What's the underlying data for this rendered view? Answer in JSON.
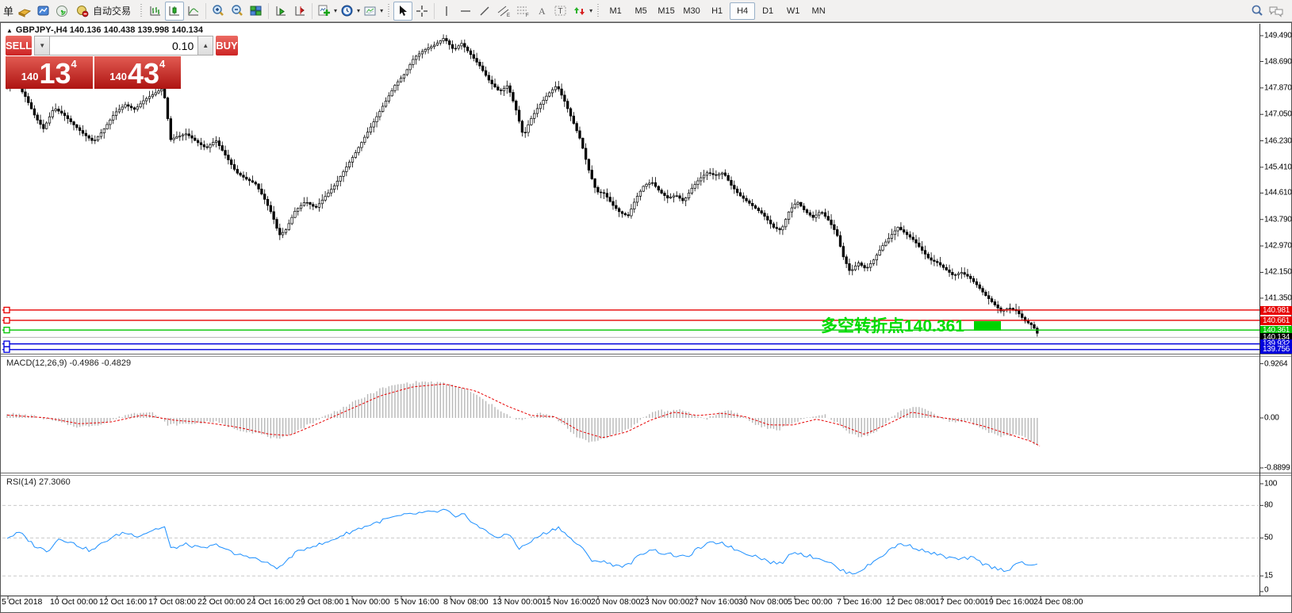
{
  "toolbar": {
    "partial_label": "单",
    "autotrade_label": "自动交易",
    "timeframes": [
      "M1",
      "M5",
      "M15",
      "M30",
      "H1",
      "H4",
      "D1",
      "W1",
      "MN"
    ],
    "active_timeframe": "H4"
  },
  "chart_header": {
    "title": "GBPJPY-,H4 140.136 140.438 139.998 140.134",
    "collapse_arrow": "▲"
  },
  "trade_panel": {
    "sell_label": "SELL",
    "buy_label": "BUY",
    "volume": "0.10",
    "sell_price_prefix": "140",
    "sell_price_main": "13",
    "sell_price_sup": "4",
    "buy_price_prefix": "140",
    "buy_price_main": "43",
    "buy_price_sup": "4"
  },
  "indicators": {
    "macd_label": "MACD(12,26,9) -0.4986 -0.4829",
    "rsi_label": "RSI(14) 27.3060"
  },
  "annotation": {
    "text": "多空转折点140.361",
    "color": "#00dc00"
  },
  "axes": {
    "price_ticks": [
      "149.490",
      "148.690",
      "147.870",
      "147.050",
      "146.230",
      "145.410",
      "144.610",
      "143.790",
      "142.970",
      "142.150",
      "141.350"
    ],
    "macd_ticks": [
      {
        "label": "0.9264",
        "value": 0.9264
      },
      {
        "label": "0.00",
        "value": 0.0
      },
      {
        "label": "-0.8899",
        "value": -0.8899
      }
    ],
    "rsi_ticks": [
      {
        "label": "100",
        "value": 100
      },
      {
        "label": "80",
        "value": 80
      },
      {
        "label": "50",
        "value": 50
      },
      {
        "label": "15",
        "value": 15
      },
      {
        "label": "0",
        "value": 0
      }
    ],
    "rsi_level_lines": [
      80,
      50,
      15
    ],
    "date_labels": [
      "5 Oct 2018",
      "10 Oct 00:00",
      "12 Oct 16:00",
      "17 Oct 08:00",
      "22 Oct 00:00",
      "24 Oct 16:00",
      "29 Oct 08:00",
      "1 Nov 00:00",
      "5 Nov 16:00",
      "8 Nov 08:00",
      "13 Nov 00:00",
      "15 Nov 16:00",
      "20 Nov 08:00",
      "23 Nov 00:00",
      "27 Nov 16:00",
      "30 Nov 08:00",
      "5 Dec 00:00",
      "7 Dec 16:00",
      "12 Dec 08:00",
      "17 Dec 00:00",
      "19 Dec 16:00",
      "24 Dec 08:00"
    ]
  },
  "price_lines": [
    {
      "price": "140.981",
      "value": 140.981,
      "color": "#e60000",
      "kind": "hline"
    },
    {
      "price": "140.661",
      "value": 140.661,
      "color": "#e60000",
      "kind": "hline"
    },
    {
      "price": "140.361",
      "value": 140.361,
      "color": "#00c400",
      "kind": "hline"
    },
    {
      "price": "140.134",
      "value": 140.134,
      "color": "#000000",
      "kind": "bid",
      "line_color": "#b4b4b4"
    },
    {
      "price": "139.932",
      "value": 139.932,
      "color": "#0000dc",
      "kind": "hline"
    },
    {
      "price": "139.756",
      "value": 139.756,
      "color": "#0000dc",
      "kind": "hline"
    }
  ],
  "chart_data": {
    "type": "candlestick",
    "symbol": "GBPJPY-",
    "timeframe": "H4",
    "ohlc_display": {
      "open": "140.136",
      "high": "140.438",
      "low": "139.998",
      "close": "140.134"
    },
    "price_path_anchors": [
      [
        8,
        147.9
      ],
      [
        20,
        148.05
      ],
      [
        32,
        147.6
      ],
      [
        45,
        146.95
      ],
      [
        55,
        146.6
      ],
      [
        68,
        147.25
      ],
      [
        80,
        147.05
      ],
      [
        92,
        146.75
      ],
      [
        105,
        146.45
      ],
      [
        118,
        146.2
      ],
      [
        130,
        146.55
      ],
      [
        145,
        147.1
      ],
      [
        158,
        147.35
      ],
      [
        170,
        147.2
      ],
      [
        182,
        147.5
      ],
      [
        195,
        147.7
      ],
      [
        205,
        147.85
      ],
      [
        210,
        147.3
      ],
      [
        214,
        146.25
      ],
      [
        222,
        146.35
      ],
      [
        235,
        146.45
      ],
      [
        248,
        146.2
      ],
      [
        260,
        146.0
      ],
      [
        272,
        146.25
      ],
      [
        285,
        145.75
      ],
      [
        298,
        145.25
      ],
      [
        310,
        145.05
      ],
      [
        322,
        144.9
      ],
      [
        333,
        144.45
      ],
      [
        343,
        143.95
      ],
      [
        352,
        143.3
      ],
      [
        360,
        143.45
      ],
      [
        372,
        144.05
      ],
      [
        385,
        144.35
      ],
      [
        398,
        144.15
      ],
      [
        410,
        144.5
      ],
      [
        422,
        144.85
      ],
      [
        435,
        145.35
      ],
      [
        448,
        145.85
      ],
      [
        460,
        146.35
      ],
      [
        472,
        146.85
      ],
      [
        485,
        147.4
      ],
      [
        498,
        147.95
      ],
      [
        510,
        148.3
      ],
      [
        522,
        148.8
      ],
      [
        535,
        149.05
      ],
      [
        548,
        149.2
      ],
      [
        560,
        149.42
      ],
      [
        572,
        149.05
      ],
      [
        582,
        149.25
      ],
      [
        592,
        148.95
      ],
      [
        605,
        148.55
      ],
      [
        618,
        148.05
      ],
      [
        630,
        147.75
      ],
      [
        640,
        147.95
      ],
      [
        650,
        147.25
      ],
      [
        660,
        146.35
      ],
      [
        668,
        146.85
      ],
      [
        678,
        147.25
      ],
      [
        690,
        147.65
      ],
      [
        702,
        147.95
      ],
      [
        712,
        147.45
      ],
      [
        722,
        146.85
      ],
      [
        732,
        146.25
      ],
      [
        742,
        145.35
      ],
      [
        752,
        144.65
      ],
      [
        762,
        144.6
      ],
      [
        772,
        144.25
      ],
      [
        782,
        144.0
      ],
      [
        792,
        143.9
      ],
      [
        802,
        144.45
      ],
      [
        812,
        144.85
      ],
      [
        822,
        144.95
      ],
      [
        832,
        144.65
      ],
      [
        842,
        144.45
      ],
      [
        852,
        144.55
      ],
      [
        862,
        144.35
      ],
      [
        872,
        144.75
      ],
      [
        882,
        145.05
      ],
      [
        892,
        145.25
      ],
      [
        902,
        145.15
      ],
      [
        912,
        145.25
      ],
      [
        922,
        144.85
      ],
      [
        932,
        144.55
      ],
      [
        942,
        144.35
      ],
      [
        952,
        144.15
      ],
      [
        962,
        143.95
      ],
      [
        975,
        143.55
      ],
      [
        985,
        143.45
      ],
      [
        995,
        144.05
      ],
      [
        1005,
        144.35
      ],
      [
        1015,
        144.05
      ],
      [
        1025,
        143.85
      ],
      [
        1035,
        144.05
      ],
      [
        1045,
        143.75
      ],
      [
        1055,
        143.35
      ],
      [
        1063,
        142.65
      ],
      [
        1072,
        142.15
      ],
      [
        1082,
        142.45
      ],
      [
        1092,
        142.25
      ],
      [
        1102,
        142.55
      ],
      [
        1112,
        142.95
      ],
      [
        1122,
        143.25
      ],
      [
        1132,
        143.55
      ],
      [
        1142,
        143.35
      ],
      [
        1152,
        143.15
      ],
      [
        1162,
        142.85
      ],
      [
        1172,
        142.55
      ],
      [
        1182,
        142.45
      ],
      [
        1192,
        142.25
      ],
      [
        1202,
        142.05
      ],
      [
        1212,
        142.15
      ],
      [
        1222,
        142.0
      ],
      [
        1232,
        141.75
      ],
      [
        1242,
        141.45
      ],
      [
        1252,
        141.2
      ],
      [
        1262,
        140.95
      ],
      [
        1272,
        141.05
      ],
      [
        1282,
        140.95
      ],
      [
        1292,
        140.65
      ],
      [
        1302,
        140.5
      ],
      [
        1311,
        140.13
      ]
    ],
    "macd_hist_anchors": [
      [
        8,
        0.08
      ],
      [
        40,
        0.04
      ],
      [
        70,
        -0.06
      ],
      [
        100,
        -0.16
      ],
      [
        130,
        -0.1
      ],
      [
        160,
        0.06
      ],
      [
        190,
        0.12
      ],
      [
        212,
        -0.12
      ],
      [
        240,
        -0.1
      ],
      [
        270,
        -0.06
      ],
      [
        300,
        -0.2
      ],
      [
        330,
        -0.28
      ],
      [
        352,
        -0.38
      ],
      [
        380,
        -0.18
      ],
      [
        405,
        0.0
      ],
      [
        430,
        0.16
      ],
      [
        455,
        0.33
      ],
      [
        480,
        0.5
      ],
      [
        505,
        0.58
      ],
      [
        530,
        0.62
      ],
      [
        555,
        0.6
      ],
      [
        575,
        0.55
      ],
      [
        595,
        0.44
      ],
      [
        615,
        0.26
      ],
      [
        635,
        0.1
      ],
      [
        650,
        -0.04
      ],
      [
        665,
        -0.02
      ],
      [
        680,
        0.08
      ],
      [
        695,
        0.04
      ],
      [
        710,
        -0.1
      ],
      [
        725,
        -0.3
      ],
      [
        742,
        -0.42
      ],
      [
        755,
        -0.38
      ],
      [
        770,
        -0.3
      ],
      [
        785,
        -0.24
      ],
      [
        800,
        -0.12
      ],
      [
        815,
        0.04
      ],
      [
        830,
        0.14
      ],
      [
        845,
        0.11
      ],
      [
        860,
        0.14
      ],
      [
        875,
        0.05
      ],
      [
        890,
        -0.02
      ],
      [
        905,
        0.08
      ],
      [
        920,
        0.14
      ],
      [
        935,
        0.04
      ],
      [
        950,
        -0.1
      ],
      [
        965,
        -0.17
      ],
      [
        980,
        -0.22
      ],
      [
        995,
        -0.1
      ],
      [
        1010,
        -0.04
      ],
      [
        1025,
        0.02
      ],
      [
        1040,
        0.05
      ],
      [
        1055,
        -0.08
      ],
      [
        1070,
        -0.26
      ],
      [
        1085,
        -0.32
      ],
      [
        1100,
        -0.27
      ],
      [
        1115,
        -0.12
      ],
      [
        1130,
        0.08
      ],
      [
        1145,
        0.17
      ],
      [
        1160,
        0.2
      ],
      [
        1175,
        0.08
      ],
      [
        1190,
        -0.02
      ],
      [
        1205,
        -0.08
      ],
      [
        1220,
        -0.05
      ],
      [
        1235,
        -0.15
      ],
      [
        1250,
        -0.27
      ],
      [
        1265,
        -0.32
      ],
      [
        1280,
        -0.28
      ],
      [
        1295,
        -0.36
      ],
      [
        1311,
        -0.5
      ]
    ],
    "macd_signal_anchors": [
      [
        8,
        0.05
      ],
      [
        60,
        0.0
      ],
      [
        100,
        -0.1
      ],
      [
        140,
        -0.07
      ],
      [
        180,
        0.05
      ],
      [
        220,
        -0.04
      ],
      [
        260,
        -0.08
      ],
      [
        300,
        -0.16
      ],
      [
        340,
        -0.28
      ],
      [
        365,
        -0.3
      ],
      [
        400,
        -0.1
      ],
      [
        440,
        0.14
      ],
      [
        480,
        0.38
      ],
      [
        520,
        0.53
      ],
      [
        560,
        0.58
      ],
      [
        600,
        0.46
      ],
      [
        640,
        0.2
      ],
      [
        670,
        0.04
      ],
      [
        700,
        0.02
      ],
      [
        730,
        -0.22
      ],
      [
        760,
        -0.34
      ],
      [
        790,
        -0.24
      ],
      [
        820,
        -0.04
      ],
      [
        850,
        0.1
      ],
      [
        880,
        0.04
      ],
      [
        910,
        0.08
      ],
      [
        940,
        0.02
      ],
      [
        970,
        -0.12
      ],
      [
        1000,
        -0.12
      ],
      [
        1030,
        -0.02
      ],
      [
        1060,
        -0.12
      ],
      [
        1090,
        -0.28
      ],
      [
        1120,
        -0.1
      ],
      [
        1150,
        0.1
      ],
      [
        1180,
        0.02
      ],
      [
        1210,
        -0.04
      ],
      [
        1240,
        -0.14
      ],
      [
        1270,
        -0.27
      ],
      [
        1300,
        -0.4
      ],
      [
        1311,
        -0.48
      ]
    ],
    "rsi_anchors": [
      [
        8,
        50
      ],
      [
        25,
        55
      ],
      [
        45,
        42
      ],
      [
        60,
        38
      ],
      [
        75,
        50
      ],
      [
        95,
        44
      ],
      [
        115,
        38
      ],
      [
        135,
        48
      ],
      [
        155,
        55
      ],
      [
        175,
        52
      ],
      [
        195,
        58
      ],
      [
        208,
        60
      ],
      [
        215,
        40
      ],
      [
        235,
        44
      ],
      [
        255,
        40
      ],
      [
        275,
        44
      ],
      [
        295,
        35
      ],
      [
        315,
        33
      ],
      [
        335,
        27
      ],
      [
        352,
        22
      ],
      [
        370,
        35
      ],
      [
        390,
        42
      ],
      [
        410,
        45
      ],
      [
        430,
        52
      ],
      [
        450,
        58
      ],
      [
        470,
        63
      ],
      [
        490,
        68
      ],
      [
        510,
        71
      ],
      [
        530,
        73
      ],
      [
        550,
        74
      ],
      [
        562,
        76
      ],
      [
        575,
        68
      ],
      [
        585,
        72
      ],
      [
        600,
        62
      ],
      [
        615,
        55
      ],
      [
        630,
        50
      ],
      [
        642,
        54
      ],
      [
        655,
        40
      ],
      [
        668,
        46
      ],
      [
        680,
        52
      ],
      [
        692,
        56
      ],
      [
        705,
        60
      ],
      [
        718,
        50
      ],
      [
        732,
        42
      ],
      [
        745,
        30
      ],
      [
        760,
        28
      ],
      [
        775,
        25
      ],
      [
        790,
        24
      ],
      [
        805,
        33
      ],
      [
        820,
        40
      ],
      [
        835,
        36
      ],
      [
        850,
        34
      ],
      [
        865,
        32
      ],
      [
        880,
        40
      ],
      [
        895,
        45
      ],
      [
        910,
        46
      ],
      [
        925,
        40
      ],
      [
        940,
        36
      ],
      [
        955,
        33
      ],
      [
        970,
        28
      ],
      [
        985,
        26
      ],
      [
        1000,
        38
      ],
      [
        1015,
        34
      ],
      [
        1030,
        32
      ],
      [
        1045,
        28
      ],
      [
        1060,
        20
      ],
      [
        1075,
        17
      ],
      [
        1090,
        22
      ],
      [
        1105,
        30
      ],
      [
        1120,
        38
      ],
      [
        1135,
        45
      ],
      [
        1150,
        42
      ],
      [
        1165,
        38
      ],
      [
        1180,
        35
      ],
      [
        1195,
        32
      ],
      [
        1210,
        30
      ],
      [
        1225,
        32
      ],
      [
        1240,
        26
      ],
      [
        1255,
        22
      ],
      [
        1270,
        20
      ],
      [
        1285,
        28
      ],
      [
        1295,
        24
      ],
      [
        1305,
        26
      ],
      [
        1311,
        27.3
      ]
    ]
  }
}
